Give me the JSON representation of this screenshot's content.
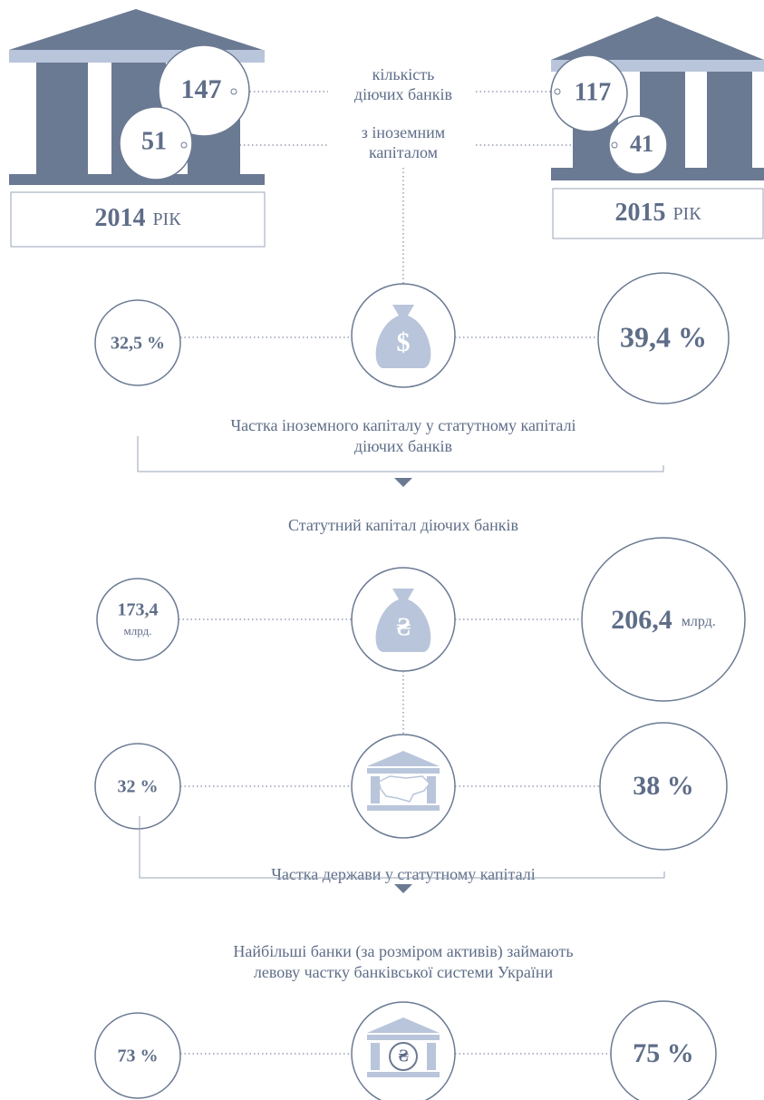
{
  "header": {
    "total_label": [
      "кількість",
      "діючих банків"
    ],
    "foreign_label": [
      "з іноземним",
      "капіталом"
    ]
  },
  "year_2014": {
    "total": "147",
    "foreign": "51",
    "year": "2014",
    "suffix": "РІК"
  },
  "year_2015": {
    "total": "117",
    "foreign": "41",
    "year": "2015",
    "suffix": "РІК"
  },
  "rows": [
    {
      "left": "32,5 %",
      "right": "39,4 %",
      "icon": "$"
    },
    {
      "left": "173,4",
      "left_unit": "млрд.",
      "right": "206,4",
      "right_unit": "млрд.",
      "icon": "₴"
    },
    {
      "left": "32 %",
      "right": "38 %"
    },
    {
      "left": "73 %",
      "right": "75 %",
      "icon": "₴"
    }
  ],
  "captions": {
    "foreign_share": [
      "Частка іноземного капіталу у статутному капіталі",
      "діючих банків"
    ],
    "charter_capital": "Статутний капітал діючих банків",
    "state_share": "Частка держави у статутному капіталі",
    "largest_banks": [
      "Найбільші банки (за розміром активів) займають",
      "левову частку банківської системи України"
    ]
  }
}
